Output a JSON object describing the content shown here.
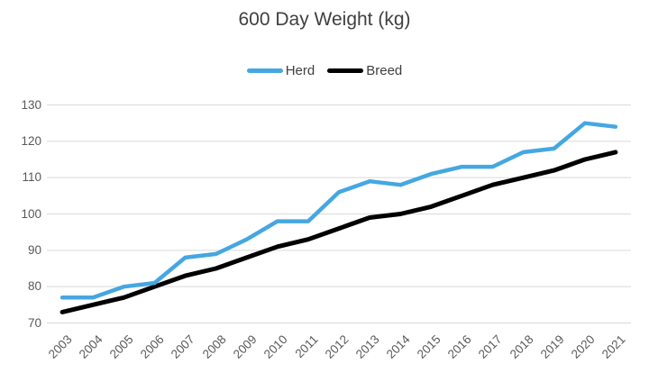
{
  "title": "600 Day Weight (kg)",
  "colors": {
    "herd_line": "#45A7E1",
    "breed_line": "#000000",
    "gridline": "#D9D9D9",
    "title_text": "#404040",
    "tick_text": "#595959",
    "background": "#FFFFFF"
  },
  "chart_data": {
    "type": "line",
    "title": "600 Day Weight (kg)",
    "categories": [
      "2003",
      "2004",
      "2005",
      "2006",
      "2007",
      "2008",
      "2009",
      "2010",
      "2011",
      "2012",
      "2013",
      "2014",
      "2015",
      "2016",
      "2017",
      "2018",
      "2019",
      "2020",
      "2021"
    ],
    "series": [
      {
        "name": "Herd",
        "color": "#45A7E1",
        "values": [
          77,
          77,
          80,
          81,
          88,
          89,
          93,
          98,
          98,
          106,
          109,
          108,
          111,
          113,
          113,
          117,
          118,
          125,
          124
        ]
      },
      {
        "name": "Breed",
        "color": "#000000",
        "values": [
          73,
          75,
          77,
          80,
          83,
          85,
          88,
          91,
          93,
          96,
          99,
          100,
          102,
          105,
          108,
          110,
          112,
          115,
          117
        ]
      }
    ],
    "xlabel": "",
    "ylabel": "",
    "ylim": [
      70,
      130
    ],
    "yticks": [
      "70",
      "80",
      "90",
      "100",
      "110",
      "120",
      "130"
    ],
    "grid": true,
    "legend_position": "top"
  }
}
